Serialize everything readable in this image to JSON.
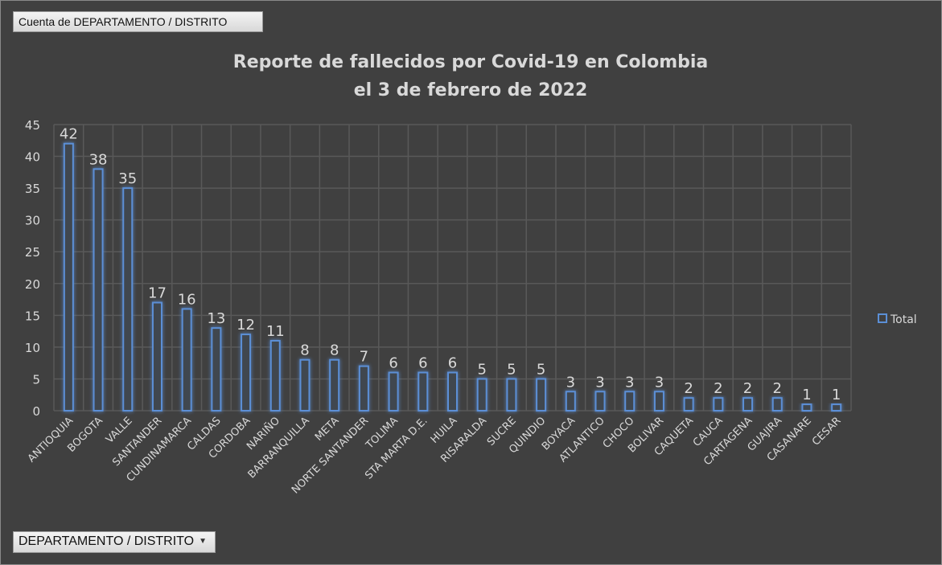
{
  "pivot": {
    "value_field": "Cuenta de DEPARTAMENTO / DISTRITO",
    "axis_field": "DEPARTAMENTO / DISTRITO"
  },
  "colors": {
    "background": "#404040",
    "bar_outline": "#5b8fd6",
    "grid": "#595959",
    "text": "#d9d9d9"
  },
  "chart_data": {
    "type": "bar",
    "title": [
      "Reporte de fallecidos por Covid-19 en Colombia",
      "el 3 de febrero de 2022"
    ],
    "xlabel": "",
    "ylabel": "",
    "ylim": [
      0,
      45
    ],
    "yticks": [
      0,
      5,
      10,
      15,
      20,
      25,
      30,
      35,
      40,
      45
    ],
    "grid": true,
    "legend_position": "right",
    "categories": [
      "ANTIOQUIA",
      "BOGOTA",
      "VALLE",
      "SANTANDER",
      "CUNDINAMARCA",
      "CALDAS",
      "CORDOBA",
      "NARIÑO",
      "BARRANQUILLA",
      "META",
      "NORTE SANTANDER",
      "TOLIMA",
      "STA MARTA D.E.",
      "HUILA",
      "RISARALDA",
      "SUCRE",
      "QUINDIO",
      "BOYACA",
      "ATLANTICO",
      "CHOCO",
      "BOLIVAR",
      "CAQUETA",
      "CAUCA",
      "CARTAGENA",
      "GUAJIRA",
      "CASANARE",
      "CESAR"
    ],
    "series": [
      {
        "name": "Total",
        "values": [
          42,
          38,
          35,
          17,
          16,
          13,
          12,
          11,
          8,
          8,
          7,
          6,
          6,
          6,
          5,
          5,
          5,
          3,
          3,
          3,
          3,
          2,
          2,
          2,
          2,
          1,
          1
        ]
      }
    ]
  }
}
